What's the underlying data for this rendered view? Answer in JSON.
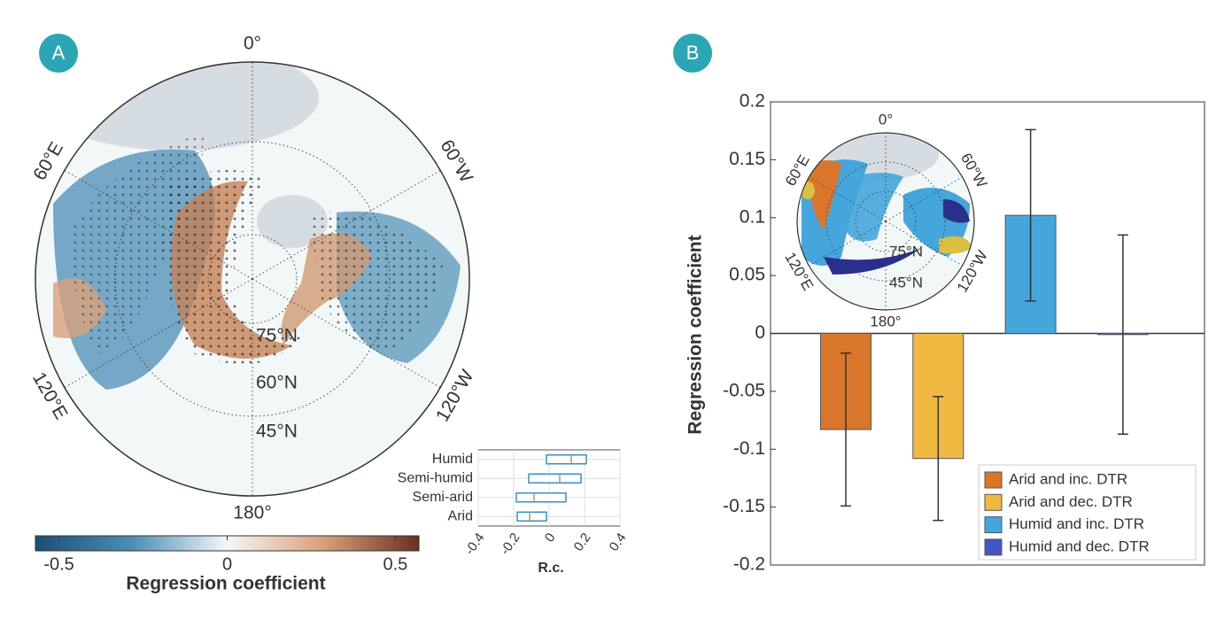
{
  "chart_data": [
    {
      "type": "polar-map",
      "panel": "A",
      "lon_labels": [
        "0°",
        "60°E",
        "60°W",
        "120°E",
        "120°W",
        "180°"
      ],
      "lat_labels": [
        "75°N",
        "60°N",
        "45°N"
      ],
      "colorbar": {
        "label": "Regression coefficient",
        "lim": [
          -0.57,
          0.57
        ],
        "ticks": [
          -0.5,
          0,
          0.5
        ],
        "colors": [
          "#1d4f74",
          "#4a8db5",
          "#f4f7f7",
          "#d9a07a",
          "#6b2f20"
        ]
      }
    },
    {
      "type": "box",
      "categories": [
        "Humid",
        "Semi-humid",
        "Semi-arid",
        "Arid"
      ],
      "q1": [
        -0.015,
        -0.115,
        -0.185,
        -0.18
      ],
      "median": [
        0.125,
        0.06,
        -0.085,
        -0.11
      ],
      "q3": [
        0.21,
        0.18,
        0.095,
        -0.015
      ],
      "xlim": [
        -0.4,
        0.4
      ],
      "xticks": [
        -0.4,
        -0.2,
        0,
        0.2,
        0.4
      ],
      "xlabel": "R.c.",
      "grid": true,
      "color": "#3a8fc4",
      "median_color": "#e08a3c"
    },
    {
      "type": "bar",
      "panel": "B",
      "ylabel": "Regression coefficient",
      "ylim": [
        -0.2,
        0.2
      ],
      "yticks": [
        -0.2,
        -0.15,
        -0.1,
        -0.05,
        0,
        0.05,
        0.1,
        0.15,
        0.2
      ],
      "categories": [
        null
      ],
      "legend": "lower right",
      "series": [
        {
          "name": "Arid and inc. DTR",
          "color": "#d9762b",
          "values": [
            -0.083
          ],
          "errors": [
            0.066
          ]
        },
        {
          "name": "Arid and dec. DTR",
          "color": "#f0b942",
          "values": [
            -0.108
          ],
          "errors": [
            0.0535
          ]
        },
        {
          "name": "Humid and inc. DTR",
          "color": "#45a6dc",
          "values": [
            0.102
          ],
          "errors": [
            0.074
          ]
        },
        {
          "name": "Humid and dec. DTR",
          "color": "#4455c8",
          "values": [
            -0.001
          ],
          "errors": [
            0.086
          ]
        }
      ],
      "inset_map": {
        "lon_labels": [
          "0°",
          "60°E",
          "60°W",
          "120°E",
          "120°W",
          "180°"
        ],
        "lat_labels": [
          "75°N",
          "45°N"
        ]
      }
    }
  ]
}
